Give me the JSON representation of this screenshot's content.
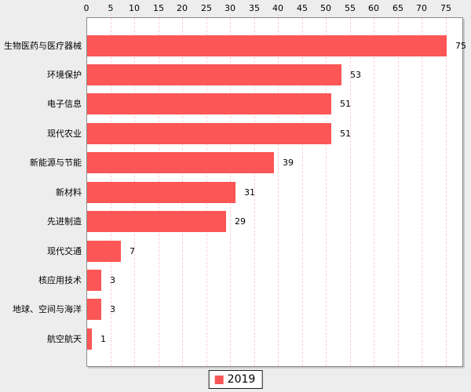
{
  "chart_data": {
    "type": "bar",
    "orientation": "horizontal",
    "title": "",
    "xlabel": "",
    "ylabel": "",
    "categories": [
      "生物医药与医疗器械",
      "环境保护",
      "电子信息",
      "现代农业",
      "新能源与节能",
      "新材料",
      "先进制造",
      "现代交通",
      "核应用技术",
      "地球、空间与海洋",
      "航空航天"
    ],
    "series": [
      {
        "name": "2019",
        "color": "#FC5656",
        "values": [
          75,
          53,
          51,
          51,
          39,
          31,
          29,
          7,
          3,
          3,
          1
        ]
      }
    ],
    "value_labels": [
      "75",
      "53",
      "51",
      "51",
      "39",
      "31",
      "29",
      "7",
      "3",
      "3",
      "1"
    ],
    "x_ticks": [
      "0",
      "5",
      "10",
      "15",
      "20",
      "25",
      "30",
      "35",
      "40",
      "45",
      "50",
      "55",
      "60",
      "65",
      "70",
      "75"
    ],
    "xlim": [
      0,
      78.3
    ],
    "axis_position": "top",
    "grid": {
      "direction": "vertical",
      "style": "dashed",
      "color": "#FFCFCF"
    },
    "legend_position": "bottom-center"
  },
  "legend": {
    "label": "2019",
    "swatch_color": "#FC5656"
  },
  "colors": {
    "bar": "#FC5656",
    "page_bg": "#EDEDED",
    "plot_bg": "#FFFFFF",
    "grid": "#FFCFCF",
    "plot_border": "#8A8A8A",
    "shadow": "#C9C9C9",
    "text": "#000000"
  }
}
